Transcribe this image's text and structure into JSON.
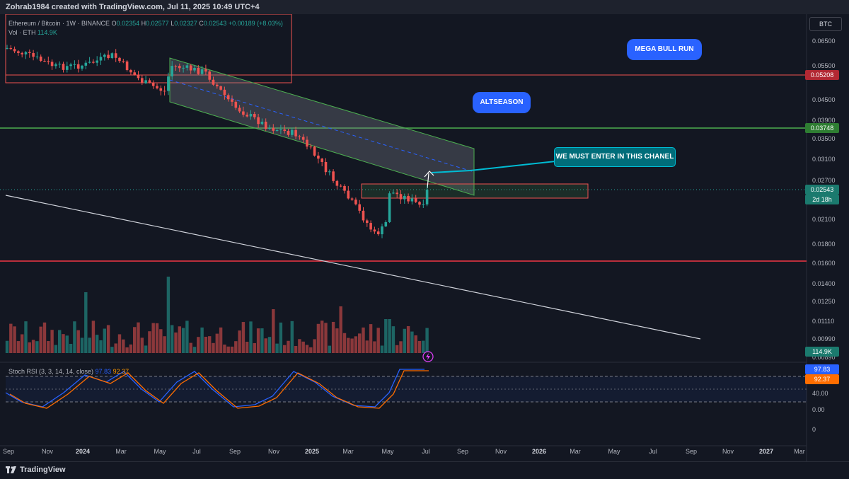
{
  "header": {
    "caption": "Zohrab1984 created with TradingView.com, Jul 11, 2025 10:49 UTC+4"
  },
  "legend": {
    "symbol": "Ethereum / Bitcoin · 1W · BINANCE",
    "open_label": "O",
    "open": "0.02354",
    "high_label": "H",
    "high": "0.02577",
    "low_label": "L",
    "low": "0.02327",
    "close_label": "C",
    "close": "0.02543",
    "change": "+0.00189 (+8.03%)",
    "vol_label": "Vol · ETH",
    "vol_value": "114.9K"
  },
  "currency_button": "BTC",
  "y_axis": {
    "ticks": [
      "0.06500",
      "0.05500",
      "0.04500",
      "0.03900",
      "0.03500",
      "0.03100",
      "0.02700",
      "0.02100",
      "0.01800",
      "0.01600",
      "0.01400",
      "0.01250",
      "0.01110",
      "0.00990",
      "0.00890"
    ]
  },
  "price_labels": {
    "resistance": "0.05208",
    "support_green": "0.03748",
    "current": "0.02543",
    "countdown": "2d 18h",
    "volume": "114.9K"
  },
  "annotations": {
    "mega": "MEGA BULL RUN",
    "altseason": "ALTSEASON",
    "channel": "WE MUST ENTER IN THIS CHANEL"
  },
  "stoch": {
    "title": "Stoch RSI (3, 3, 14, 14, close)",
    "k_value": "97.83",
    "d_value": "92.37",
    "ticks": [
      "40.00",
      "0.00",
      "0"
    ]
  },
  "x_axis": {
    "ticks": [
      "Sep",
      "Nov",
      "2024",
      "Mar",
      "May",
      "Jul",
      "Sep",
      "Nov",
      "2025",
      "Mar",
      "May",
      "Jul",
      "Sep",
      "Nov",
      "2026",
      "Mar",
      "May",
      "Jul",
      "Sep",
      "Nov",
      "2027",
      "Mar"
    ]
  },
  "footer": {
    "brand": "TradingView"
  },
  "colors": {
    "up": "#26a69a",
    "down": "#ef5350",
    "background": "#131722",
    "callout_blue": "#2962ff",
    "callout_teal": "#006d7a"
  }
}
